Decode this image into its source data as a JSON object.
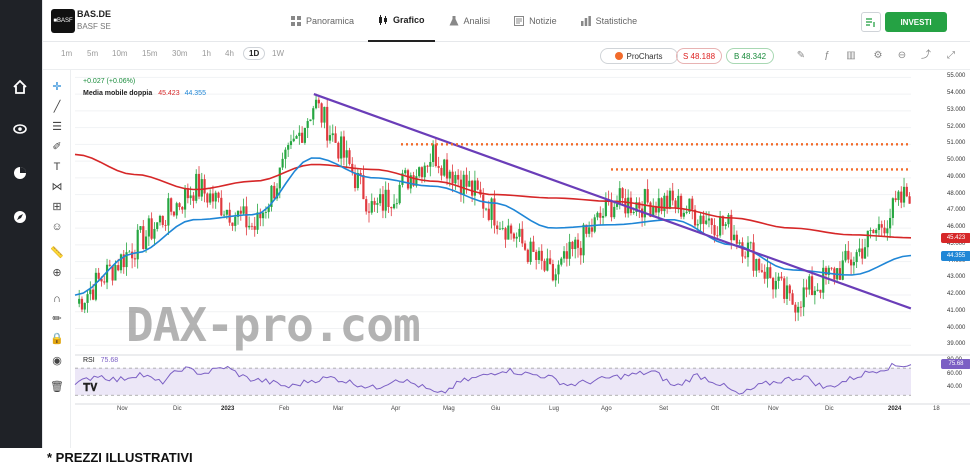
{
  "header": {
    "ticker": "BAS.DE",
    "name": "BASF SE",
    "tabs": [
      {
        "label": "Panoramica",
        "icon": "overview-icon"
      },
      {
        "label": "Grafico",
        "icon": "candles-icon",
        "active": true
      },
      {
        "label": "Analisi",
        "icon": "flask-icon"
      },
      {
        "label": "Notizie",
        "icon": "news-icon"
      },
      {
        "label": "Statistiche",
        "icon": "stats-icon"
      }
    ],
    "invest_label": "INVESTI"
  },
  "toolbar": {
    "timeframes": [
      "1m",
      "5m",
      "10m",
      "15m",
      "30m",
      "1h",
      "4h",
      "1D",
      "1W"
    ],
    "active_timeframe": "1D",
    "procharts_label": "ProCharts",
    "sell_label": "S 48.188",
    "buy_label": "B 48.342"
  },
  "legend": {
    "change": "+0.027 (+0.06%)",
    "ma_label": "Media mobile doppia",
    "ma_red": "45.423",
    "ma_blue": "44.355",
    "rsi_label": "RSI",
    "rsi_value": "75.68"
  },
  "watermark": "DAX-pro.com",
  "footer_note": "* PREZZI ILLUSTRATIVI",
  "colors": {
    "up": "#26a641",
    "down": "#e0393e",
    "ma_slow": "#d62728",
    "ma_fast": "#1f86d6",
    "trendline": "#6a3db8",
    "resistance": "#f26b2b",
    "rsi": "#7b5fc4",
    "invest": "#25a244"
  },
  "chart_data": {
    "type": "line",
    "title": "",
    "x_ticks": [
      "Nov",
      "Dic",
      "2023",
      "Feb",
      "Mar",
      "Apr",
      "Mag",
      "Giu",
      "Lug",
      "Ago",
      "Set",
      "Ott",
      "Nov",
      "Dic",
      "2024",
      "18"
    ],
    "y_ticks": [
      "55.000",
      "54.000",
      "53.000",
      "52.000",
      "51.000",
      "50.000",
      "49.000",
      "48.000",
      "47.000",
      "46.000",
      "45.000",
      "44.000",
      "43.000",
      "42.000",
      "41.000",
      "40.000",
      "39.000"
    ],
    "ylim": [
      38.6,
      55.2
    ],
    "series": [
      {
        "name": "",
        "x": [
          "Ott 2022",
          "Nov",
          "Dic",
          "Gen 2023",
          "Feb",
          "Mar",
          "Apr",
          "Mag",
          "Giu",
          "Lug",
          "Ago",
          "Set",
          "Ott",
          "Nov",
          "Dic"
        ],
        "values": [
          41.5,
          45.0,
          48.5,
          46.0,
          53.5,
          47.0,
          50.5,
          47.0,
          43.0,
          47.5,
          47.5,
          46.0,
          41.5,
          44.0,
          48.2
        ]
      },
      {
        "name": "",
        "x": [
          "Ott 2022",
          "Nov",
          "Dic",
          "Gen 2023",
          "Feb",
          "Mar",
          "Apr",
          "Mag",
          "Giu",
          "Lug",
          "Ago",
          "Set",
          "Ott",
          "Nov",
          "Dic"
        ],
        "values": [
          50.4,
          49.2,
          48.3,
          48.8,
          49.8,
          49.5,
          48.8,
          48.0,
          47.8,
          47.6,
          47.2,
          46.6,
          46.0,
          45.6,
          45.42
        ]
      },
      {
        "name": "",
        "x": [
          "Ott 2022",
          "Nov",
          "Dic",
          "Gen 2023",
          "Feb",
          "Mar",
          "Apr",
          "Mag",
          "Giu",
          "Lug",
          "Ago",
          "Set",
          "Ott",
          "Nov",
          "Dic"
        ],
        "values": [
          42.0,
          44.5,
          46.5,
          46.8,
          50.2,
          49.0,
          48.5,
          47.5,
          46.0,
          46.2,
          46.5,
          45.0,
          43.5,
          43.2,
          44.36
        ]
      }
    ],
    "trendline": [
      {
        "x": "Feb 2023",
        "y": 54.0
      },
      {
        "x": "Dic 2023",
        "y": 41.2
      }
    ],
    "resistance_levels": [
      51.0,
      49.5
    ],
    "current_labels": {
      "ma_slow": "45.423",
      "ma_fast": "44.355",
      "last": "48.188"
    },
    "rsi": {
      "y_ticks": [
        "80.00",
        "60.00",
        "40.00"
      ],
      "ylim": [
        20,
        82
      ],
      "values": [
        45,
        60,
        52,
        62,
        48,
        70,
        62,
        72,
        55,
        50,
        42,
        52,
        56,
        48,
        40,
        55,
        45,
        30,
        50,
        58,
        68,
        62,
        58,
        45,
        50,
        56,
        60,
        65,
        42,
        60,
        48,
        30,
        45,
        52,
        58,
        40,
        52,
        64,
        72,
        76
      ],
      "overbought": 70,
      "oversold": 30
    }
  }
}
